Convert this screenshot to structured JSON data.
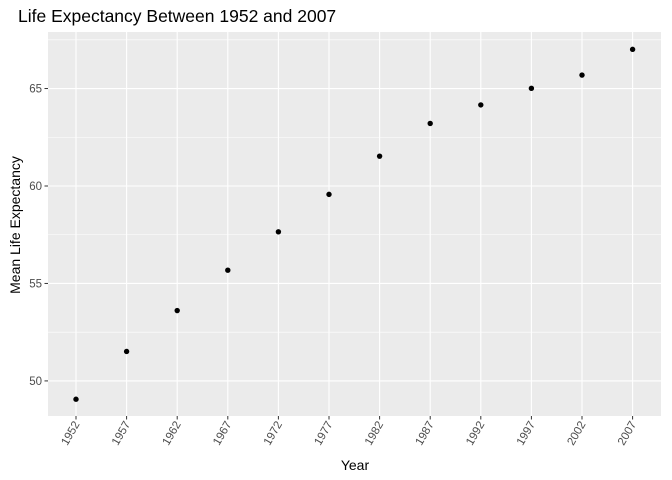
{
  "chart_data": {
    "type": "scatter",
    "title": "Life Expectancy Between 1952 and 2007",
    "xlabel": "Year",
    "ylabel": "Mean Life Expectancy",
    "x": [
      "1952",
      "1957",
      "1962",
      "1967",
      "1972",
      "1977",
      "1982",
      "1987",
      "1992",
      "1997",
      "2002",
      "2007"
    ],
    "y": [
      49.06,
      51.51,
      53.61,
      55.68,
      57.65,
      59.57,
      61.53,
      63.21,
      64.16,
      65.01,
      65.69,
      67.01
    ],
    "yticks": [
      50,
      55,
      60,
      65
    ],
    "ylim": [
      48.2,
      67.9
    ],
    "grid": true,
    "legend": "none",
    "colors": {
      "panel": "#ebebeb",
      "grid": "#ffffff",
      "point": "#000000",
      "tick_text": "#4d4d4d",
      "tick_mark": "#333333"
    }
  }
}
